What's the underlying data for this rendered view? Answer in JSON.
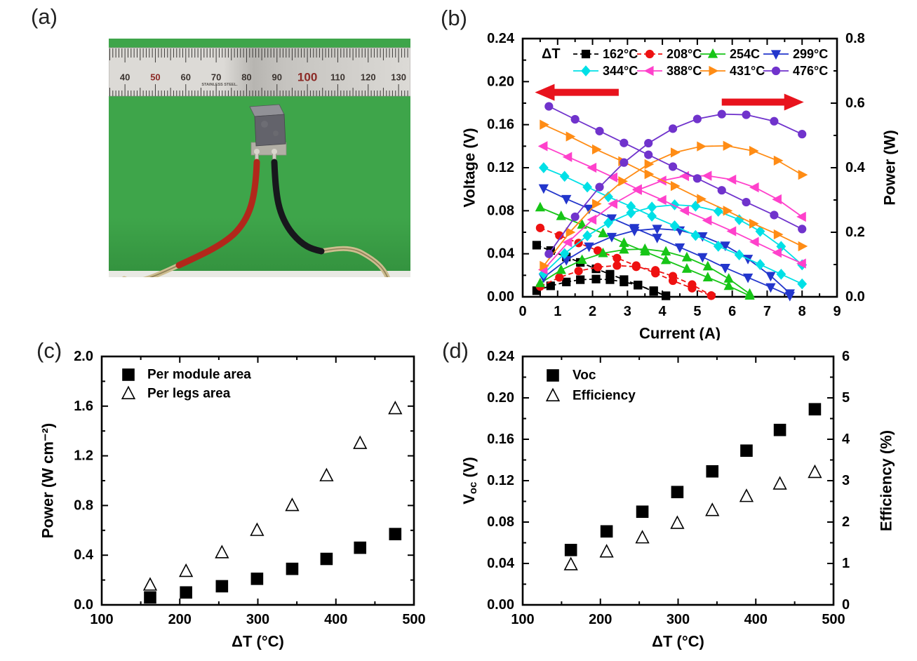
{
  "page": {
    "background": "#ffffff"
  },
  "panels": {
    "a": {
      "label": "(a)"
    },
    "b": {
      "label": "(b)"
    },
    "c": {
      "label": "(c)"
    },
    "d": {
      "label": "(d)"
    }
  },
  "photo": {
    "description": "thermoelectric module with red and black lead wires on green background under a steel ruler",
    "background_color": "#3ea54a",
    "background_edge_color": "#33913e",
    "ruler": {
      "metal_color_light": "#dcdad6",
      "metal_color_dark": "#b7b5b1",
      "numbers": [
        "40",
        "50",
        "60",
        "70",
        "80",
        "90",
        "100",
        "110",
        "120",
        "130"
      ],
      "red_numbers": [
        "50",
        "100"
      ],
      "big_numbers": [
        "100"
      ],
      "brand_text": "STAINLESS STEEL.",
      "tick_color": "#3c3a38",
      "number_color": "#3b3430",
      "red_number_color": "#8c2a26"
    },
    "module": {
      "top_color": "#919197",
      "front_color": "#63636b",
      "base_color": "#b2afa5",
      "pin_color": "#cfccc2"
    },
    "wires": {
      "left_color": "#b2271b",
      "right_color": "#17171c",
      "bare_color": "#cdbd8f",
      "bare_core_color": "#8f8058"
    }
  },
  "chart_data": [
    {
      "panel": "b",
      "type": "line",
      "xlabel": "Current (A)",
      "ylabel_left": "Voltage (V)",
      "ylabel_right": "Power (W)",
      "xlim": [
        0,
        9
      ],
      "ylim_left": [
        0.0,
        0.24
      ],
      "ylim_right": [
        0.0,
        0.8
      ],
      "xtick_labels": [
        "0",
        "1",
        "2",
        "3",
        "4",
        "5",
        "6",
        "7",
        "8",
        "9"
      ],
      "ytick_left_labels": [
        "0.00",
        "0.04",
        "0.08",
        "0.12",
        "0.16",
        "0.20",
        "0.24"
      ],
      "ytick_right_labels": [
        "0.0",
        "0.2",
        "0.4",
        "0.6",
        "0.8"
      ],
      "minor_divisions": 2,
      "grid": false,
      "legend_title": "ΔT",
      "legend_position": "inside-top",
      "arrow_color": "#e8131d",
      "arrows": [
        {
          "dir": "left",
          "x_tail": 2.75,
          "x_tip": 0.35,
          "y_left_axis": 0.19,
          "meaning": "voltage curves read left axis"
        },
        {
          "dir": "right",
          "x_tail": 5.7,
          "x_tip": 8.05,
          "y_left_axis": 0.181,
          "meaning": "power curves read right axis"
        }
      ],
      "series": [
        {
          "name": "162°C",
          "color": "#000000",
          "marker": "square",
          "line": "dashed",
          "voltage_IV": [
            [
              0.4,
              0.048
            ],
            [
              0.8,
              0.043
            ],
            [
              1.25,
              0.037
            ],
            [
              1.65,
              0.032
            ],
            [
              2.1,
              0.026
            ],
            [
              2.5,
              0.021
            ],
            [
              2.9,
              0.016
            ],
            [
              3.3,
              0.011
            ],
            [
              3.75,
              0.005
            ],
            [
              4.1,
              0.001
            ]
          ],
          "power_IP": [
            [
              0.4,
              0.019
            ],
            [
              0.8,
              0.034
            ],
            [
              1.25,
              0.046
            ],
            [
              1.65,
              0.053
            ],
            [
              2.1,
              0.055
            ],
            [
              2.5,
              0.053
            ],
            [
              2.9,
              0.046
            ],
            [
              3.3,
              0.036
            ],
            [
              3.75,
              0.019
            ],
            [
              4.1,
              0.003
            ]
          ]
        },
        {
          "name": "208°C",
          "color": "#ee1111",
          "marker": "circle",
          "line": "dashed",
          "voltage_IV": [
            [
              0.5,
              0.064
            ],
            [
              1.05,
              0.057
            ],
            [
              1.6,
              0.05
            ],
            [
              2.15,
              0.043
            ],
            [
              2.7,
              0.036
            ],
            [
              3.25,
              0.029
            ],
            [
              3.8,
              0.022
            ],
            [
              4.3,
              0.015
            ],
            [
              4.85,
              0.008
            ],
            [
              5.4,
              0.001
            ]
          ],
          "power_IP": [
            [
              0.5,
              0.032
            ],
            [
              1.05,
              0.06
            ],
            [
              1.6,
              0.08
            ],
            [
              2.15,
              0.092
            ],
            [
              2.7,
              0.097
            ],
            [
              3.25,
              0.093
            ],
            [
              3.8,
              0.082
            ],
            [
              4.3,
              0.064
            ],
            [
              4.85,
              0.038
            ],
            [
              5.4,
              0.004
            ]
          ]
        },
        {
          "name": "254C",
          "color": "#17c517",
          "marker": "triangle-up",
          "line": "solid",
          "voltage_IV": [
            [
              0.5,
              0.083
            ],
            [
              1.1,
              0.075
            ],
            [
              1.7,
              0.067
            ],
            [
              2.3,
              0.059
            ],
            [
              2.9,
              0.05
            ],
            [
              3.5,
              0.042
            ],
            [
              4.1,
              0.034
            ],
            [
              4.7,
              0.026
            ],
            [
              5.3,
              0.018
            ],
            [
              5.9,
              0.01
            ],
            [
              6.5,
              0.001
            ]
          ],
          "power_IP": [
            [
              0.5,
              0.042
            ],
            [
              1.1,
              0.083
            ],
            [
              1.7,
              0.114
            ],
            [
              2.3,
              0.135
            ],
            [
              2.9,
              0.146
            ],
            [
              3.5,
              0.148
            ],
            [
              4.1,
              0.14
            ],
            [
              4.7,
              0.122
            ],
            [
              5.3,
              0.094
            ],
            [
              5.9,
              0.056
            ],
            [
              6.5,
              0.009
            ]
          ]
        },
        {
          "name": "299°C",
          "color": "#2336cc",
          "marker": "triangle-down",
          "line": "solid",
          "voltage_IV": [
            [
              0.6,
              0.101
            ],
            [
              1.25,
              0.091
            ],
            [
              1.9,
              0.082
            ],
            [
              2.55,
              0.073
            ],
            [
              3.2,
              0.064
            ],
            [
              3.85,
              0.055
            ],
            [
              4.5,
              0.046
            ],
            [
              5.15,
              0.037
            ],
            [
              5.8,
              0.027
            ],
            [
              6.45,
              0.018
            ],
            [
              7.1,
              0.009
            ],
            [
              7.65,
              0.001
            ]
          ],
          "power_IP": [
            [
              0.6,
              0.06
            ],
            [
              1.25,
              0.114
            ],
            [
              1.9,
              0.156
            ],
            [
              2.55,
              0.186
            ],
            [
              3.2,
              0.205
            ],
            [
              3.85,
              0.211
            ],
            [
              4.5,
              0.206
            ],
            [
              5.15,
              0.188
            ],
            [
              5.8,
              0.159
            ],
            [
              6.45,
              0.118
            ],
            [
              7.1,
              0.065
            ],
            [
              7.65,
              0.011
            ]
          ]
        },
        {
          "name": "344°C",
          "color": "#00e0e6",
          "marker": "diamond",
          "line": "solid",
          "voltage_IV": [
            [
              0.6,
              0.12
            ],
            [
              1.2,
              0.112
            ],
            [
              1.85,
              0.102
            ],
            [
              2.45,
              0.093
            ],
            [
              3.1,
              0.084
            ],
            [
              3.7,
              0.075
            ],
            [
              4.35,
              0.066
            ],
            [
              4.95,
              0.057
            ],
            [
              5.6,
              0.047
            ],
            [
              6.2,
              0.039
            ],
            [
              6.8,
              0.03
            ],
            [
              7.4,
              0.021
            ],
            [
              8.0,
              0.012
            ]
          ],
          "power_IP": [
            [
              0.6,
              0.072
            ],
            [
              1.2,
              0.134
            ],
            [
              1.85,
              0.189
            ],
            [
              2.45,
              0.229
            ],
            [
              3.1,
              0.26
            ],
            [
              3.7,
              0.278
            ],
            [
              4.35,
              0.285
            ],
            [
              4.95,
              0.281
            ],
            [
              5.6,
              0.265
            ],
            [
              6.2,
              0.239
            ],
            [
              6.8,
              0.203
            ],
            [
              7.4,
              0.156
            ],
            [
              8.0,
              0.099
            ]
          ]
        },
        {
          "name": "388°C",
          "color": "#ff41cb",
          "marker": "triangle-left",
          "line": "solid",
          "voltage_IV": [
            [
              0.6,
              0.14
            ],
            [
              1.3,
              0.13
            ],
            [
              2.0,
              0.12
            ],
            [
              2.6,
              0.111
            ],
            [
              3.3,
              0.1
            ],
            [
              4.0,
              0.09
            ],
            [
              4.65,
              0.08
            ],
            [
              5.3,
              0.071
            ],
            [
              6.0,
              0.061
            ],
            [
              6.65,
              0.051
            ],
            [
              7.3,
              0.041
            ],
            [
              8.0,
              0.031
            ]
          ],
          "power_IP": [
            [
              0.6,
              0.084
            ],
            [
              1.3,
              0.169
            ],
            [
              2.0,
              0.239
            ],
            [
              2.6,
              0.288
            ],
            [
              3.3,
              0.331
            ],
            [
              4.0,
              0.36
            ],
            [
              4.65,
              0.374
            ],
            [
              5.3,
              0.375
            ],
            [
              6.0,
              0.363
            ],
            [
              6.65,
              0.339
            ],
            [
              7.3,
              0.302
            ],
            [
              8.0,
              0.248
            ]
          ]
        },
        {
          "name": "431°C",
          "color": "#ff8c15",
          "marker": "triangle-right",
          "line": "solid",
          "voltage_IV": [
            [
              0.6,
              0.16
            ],
            [
              1.35,
              0.149
            ],
            [
              2.1,
              0.137
            ],
            [
              2.85,
              0.126
            ],
            [
              3.6,
              0.114
            ],
            [
              4.35,
              0.103
            ],
            [
              5.1,
              0.091
            ],
            [
              5.85,
              0.08
            ],
            [
              6.6,
              0.068
            ],
            [
              7.3,
              0.058
            ],
            [
              8.0,
              0.047
            ]
          ],
          "power_IP": [
            [
              0.6,
              0.096
            ],
            [
              1.35,
              0.2
            ],
            [
              2.1,
              0.288
            ],
            [
              2.85,
              0.358
            ],
            [
              3.6,
              0.411
            ],
            [
              4.35,
              0.447
            ],
            [
              5.1,
              0.466
            ],
            [
              5.85,
              0.468
            ],
            [
              6.6,
              0.452
            ],
            [
              7.3,
              0.422
            ],
            [
              8.0,
              0.378
            ]
          ]
        },
        {
          "name": "476°C",
          "color": "#7033cc",
          "marker": "circle",
          "line": "solid",
          "voltage_IV": [
            [
              0.75,
              0.177
            ],
            [
              1.5,
              0.165
            ],
            [
              2.2,
              0.154
            ],
            [
              2.9,
              0.143
            ],
            [
              3.6,
              0.132
            ],
            [
              4.3,
              0.121
            ],
            [
              5.0,
              0.11
            ],
            [
              5.7,
              0.099
            ],
            [
              6.4,
              0.088
            ],
            [
              7.2,
              0.076
            ],
            [
              8.0,
              0.063
            ]
          ],
          "power_IP": [
            [
              0.75,
              0.133
            ],
            [
              1.5,
              0.248
            ],
            [
              2.2,
              0.34
            ],
            [
              2.9,
              0.416
            ],
            [
              3.6,
              0.476
            ],
            [
              4.3,
              0.521
            ],
            [
              5.0,
              0.551
            ],
            [
              5.7,
              0.566
            ],
            [
              6.4,
              0.564
            ],
            [
              7.2,
              0.544
            ],
            [
              8.0,
              0.504
            ]
          ]
        }
      ]
    },
    {
      "panel": "c",
      "type": "scatter",
      "xlabel": "ΔT (°C)",
      "ylabel_left": "Power (W cm⁻²)",
      "xlim": [
        100,
        500
      ],
      "ylim_left": [
        0.0,
        2.0
      ],
      "xtick_labels": [
        "100",
        "200",
        "300",
        "400",
        "500"
      ],
      "ytick_left_labels": [
        "0.0",
        "0.4",
        "0.8",
        "1.2",
        "1.6",
        "2.0"
      ],
      "minor_divisions": 2,
      "grid": false,
      "legend_position": "inside-top-left",
      "x": [
        162,
        208,
        254,
        299,
        344,
        388,
        431,
        476
      ],
      "series": [
        {
          "name": "Per module area",
          "axis": "left",
          "color": "#000000",
          "marker": "square",
          "fill": "filled",
          "values": [
            0.06,
            0.1,
            0.15,
            0.21,
            0.29,
            0.37,
            0.46,
            0.57
          ]
        },
        {
          "name": "Per legs area",
          "axis": "left",
          "color": "#000000",
          "marker": "triangle-up",
          "fill": "open",
          "values": [
            0.16,
            0.27,
            0.42,
            0.6,
            0.8,
            1.04,
            1.3,
            1.58
          ]
        }
      ]
    },
    {
      "panel": "d",
      "type": "scatter",
      "xlabel": "ΔT (°C)",
      "ylabel_left_parts": [
        {
          "t": "V"
        },
        {
          "t": "oc",
          "sub": true
        },
        {
          "t": " (V)"
        }
      ],
      "ylabel_right": "Efficiency (%)",
      "xlim": [
        100,
        500
      ],
      "ylim_left": [
        0.0,
        0.24
      ],
      "ylim_right": [
        0,
        6
      ],
      "xtick_labels": [
        "100",
        "200",
        "300",
        "400",
        "500"
      ],
      "ytick_left_labels": [
        "0.00",
        "0.04",
        "0.08",
        "0.12",
        "0.16",
        "0.20",
        "0.24"
      ],
      "ytick_right_labels": [
        "0",
        "1",
        "2",
        "3",
        "4",
        "5",
        "6"
      ],
      "minor_divisions": 2,
      "grid": false,
      "legend_position": "inside-top-left",
      "x": [
        162,
        208,
        254,
        299,
        344,
        388,
        431,
        476
      ],
      "series": [
        {
          "name": "Voc",
          "axis": "left",
          "color": "#000000",
          "marker": "square",
          "fill": "filled",
          "values": [
            0.053,
            0.071,
            0.09,
            0.109,
            0.129,
            0.149,
            0.169,
            0.189
          ]
        },
        {
          "name": "Efficiency",
          "axis": "right",
          "color": "#000000",
          "marker": "triangle-up",
          "fill": "open",
          "values": [
            0.97,
            1.28,
            1.62,
            1.97,
            2.28,
            2.62,
            2.92,
            3.2
          ]
        }
      ]
    }
  ]
}
